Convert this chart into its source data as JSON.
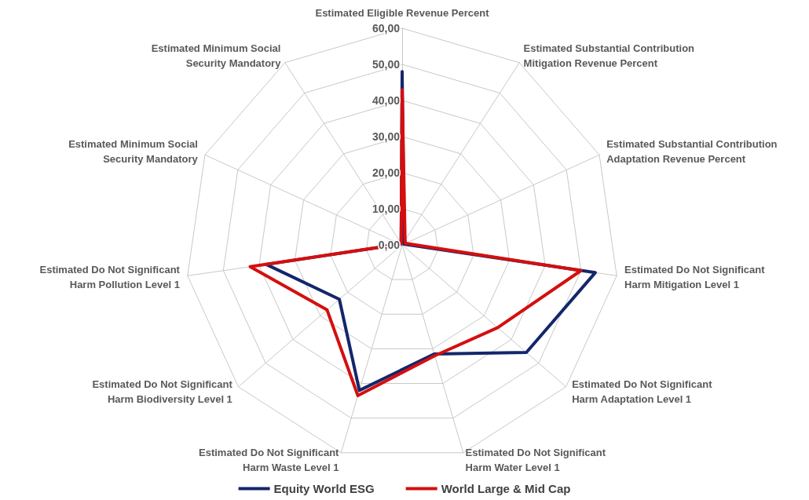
{
  "chart_data": {
    "type": "radar",
    "categories": [
      "Estimated Eligible Revenue Percent",
      "Estimated Substantial Contribution Mitigation Revenue Percent",
      "Estimated Substantial Contribution Adaptation Revenue Percent",
      "Estimated Do Not Significant Harm Mitigation Level 1",
      "Estimated Do Not Significant Harm Adaptation Level 1",
      "Estimated Do Not Significant Harm Water Level 1",
      "Estimated Do Not Significant Harm Waste Level 1",
      "Estimated Do Not Significant Harm Biodiversity Level 1",
      "Estimated Do Not Significant Harm Pollution Level 1",
      "Estimated Minimum Social Security Mandatory",
      "Estimated Minimum Social Security Mandatory"
    ],
    "series": [
      {
        "name": "Equity World ESG",
        "color": "#14266b",
        "values": [
          48,
          1,
          0.5,
          54,
          45.5,
          31.5,
          42,
          23,
          38,
          0.5,
          0.5
        ]
      },
      {
        "name": "World Large & Mid Cap",
        "color": "#d40f0f",
        "values": [
          43,
          1.5,
          1,
          50,
          35,
          32,
          43.5,
          27.5,
          42.5,
          0.5,
          0.5
        ]
      }
    ],
    "ylim": [
      0,
      60
    ],
    "yticks": [
      {
        "value": 0,
        "label": "0,00"
      },
      {
        "value": 10,
        "label": "10,00"
      },
      {
        "value": 20,
        "label": "20,00"
      },
      {
        "value": 30,
        "label": "30,00"
      },
      {
        "value": 40,
        "label": "40,00"
      },
      {
        "value": 50,
        "label": "50,00"
      },
      {
        "value": 60,
        "label": "60,00"
      }
    ],
    "grid": true,
    "legend": "bottom",
    "marker": "none",
    "line_style": "solid"
  }
}
